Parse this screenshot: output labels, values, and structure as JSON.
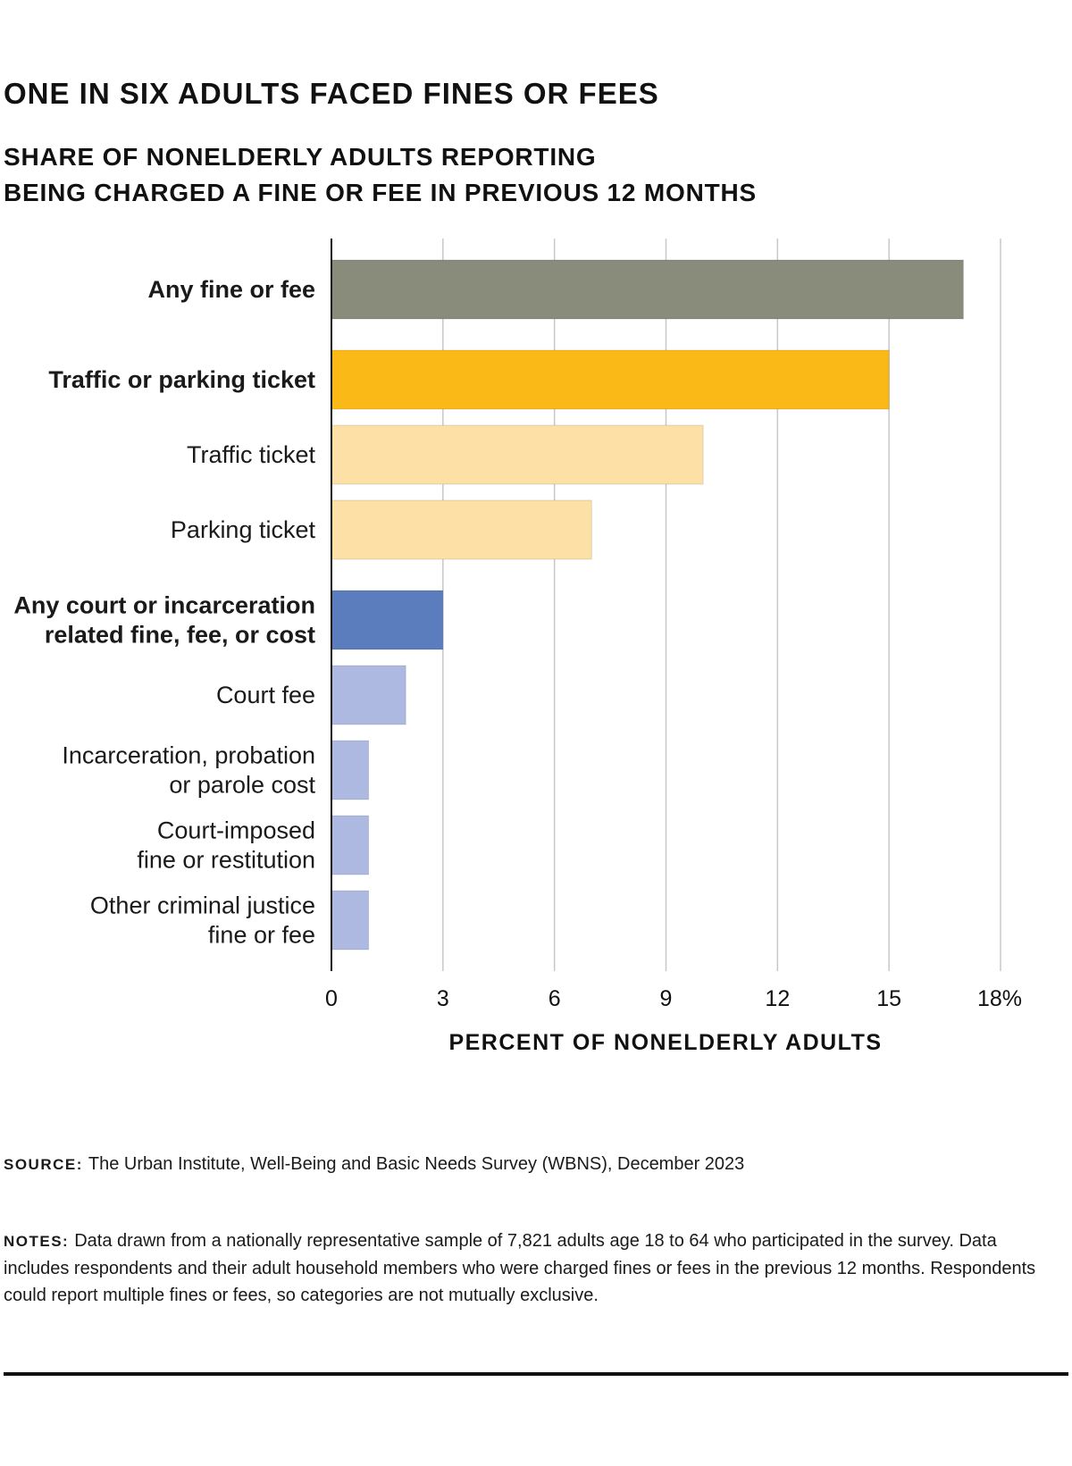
{
  "title": "ONE IN SIX ADULTS FACED FINES OR FEES",
  "subtitle": [
    "SHARE OF NONELDERLY ADULTS REPORTING",
    "BEING CHARGED A FINE OR FEE IN PREVIOUS 12 MONTHS"
  ],
  "colors": {
    "any_fine": "#898b7b",
    "traffic_parking": "#fbb917",
    "traffic_light": "#fde0a6",
    "court_any": "#5b7dbd",
    "court_light": "#adb9e0",
    "grid": "#c8c8c8",
    "axis": "#111111"
  },
  "chart_data": {
    "type": "bar",
    "orientation": "horizontal",
    "categories": [
      {
        "lines": [
          "Any fine or fee"
        ],
        "bold": true
      },
      {
        "lines": [
          "Traffic or parking ticket"
        ],
        "bold": true
      },
      {
        "lines": [
          "Traffic ticket"
        ],
        "bold": false
      },
      {
        "lines": [
          "Parking ticket"
        ],
        "bold": false
      },
      {
        "lines": [
          "Any court or incarceration",
          "related fine, fee, or cost"
        ],
        "bold": true
      },
      {
        "lines": [
          "Court fee"
        ],
        "bold": false
      },
      {
        "lines": [
          "Incarceration, probation",
          "or parole cost"
        ],
        "bold": false
      },
      {
        "lines": [
          "Court-imposed",
          "fine or restitution"
        ],
        "bold": false
      },
      {
        "lines": [
          "Other criminal justice",
          "fine or fee"
        ],
        "bold": false
      }
    ],
    "values": [
      17,
      15,
      10,
      7,
      3,
      2,
      1,
      1,
      1
    ],
    "bar_colors": [
      "any_fine",
      "traffic_parking",
      "traffic_light",
      "traffic_light",
      "court_any",
      "court_light",
      "court_light",
      "court_light",
      "court_light"
    ],
    "xlim": [
      0,
      18
    ],
    "xticks": [
      "0",
      "3",
      "6",
      "9",
      "12",
      "15",
      "18%"
    ],
    "xlabel": "PERCENT OF NONELDERLY ADULTS",
    "grid": true,
    "legend": "none"
  },
  "source": {
    "lead": "SOURCE:",
    "text": "The Urban Institute, Well-Being and Basic Needs Survey (WBNS), December 2023"
  },
  "notes": {
    "lead": "NOTES:",
    "text": "Data drawn from a nationally representative sample of 7,821 adults age 18 to 64 who participated in the survey. Data includes respondents and their adult household members who were charged fines or fees in the previous 12 months. Respondents could report multiple fines or fees, so categories are not mutually exclusive."
  }
}
